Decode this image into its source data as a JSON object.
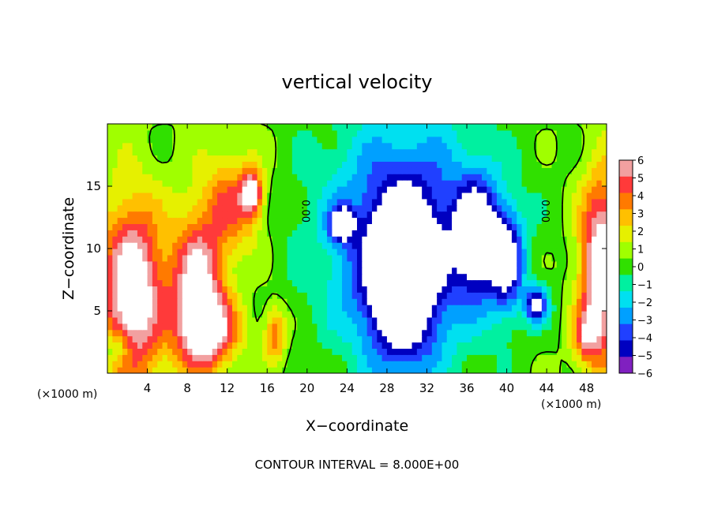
{
  "chart_data": {
    "type": "heatmap",
    "title": "vertical velocity",
    "xlabel": "X−coordinate",
    "ylabel": "Z−coordinate",
    "x_unit_left": "(×1000 m)",
    "x_unit_right": "(×1000 m)",
    "xlim": [
      0,
      50
    ],
    "ylim": [
      0,
      20
    ],
    "xticks": [
      4,
      8,
      12,
      16,
      20,
      24,
      28,
      32,
      36,
      40,
      44,
      48
    ],
    "yticks": [
      5,
      10,
      15
    ],
    "colorbar": {
      "levels": [
        6,
        5,
        4,
        3,
        2,
        1,
        0,
        -1,
        -2,
        -3,
        -4,
        -5,
        -6
      ],
      "tick_labels": [
        "6",
        "5",
        "4",
        "3",
        "2",
        "1",
        "0",
        "−1",
        "−2",
        "−3",
        "−4",
        "−5",
        "−6"
      ],
      "colors": [
        "#f2a0a0",
        "#ff3a3a",
        "#ff7a00",
        "#ffc000",
        "#e6f000",
        "#a0ff00",
        "#30e000",
        "#00f0a0",
        "#00e0f0",
        "#00a0ff",
        "#2040ff",
        "#0000c0",
        "#8020c0"
      ]
    },
    "contour_labels": [
      {
        "text": "0.00",
        "x": 19.5,
        "y": 13
      },
      {
        "text": "0.00",
        "x": 43.5,
        "y": 13
      }
    ],
    "footer": "CONTOUR INTERVAL = 8.000E+00",
    "features": [
      {
        "kind": "updraft",
        "value": 8,
        "x": 2.5,
        "y": 6.5,
        "sx": 2.2,
        "sy": 5.0
      },
      {
        "kind": "updraft",
        "value": 7,
        "x": 9.0,
        "y": 6.5,
        "sx": 1.8,
        "sy": 4.2
      },
      {
        "kind": "updraft",
        "value": 4,
        "x": 12.5,
        "y": 13.5,
        "sx": 2.0,
        "sy": 2.8
      },
      {
        "kind": "updraft",
        "value": 6,
        "x": 14.5,
        "y": 14.5,
        "sx": 0.7,
        "sy": 1.3
      },
      {
        "kind": "updraft",
        "value": 5,
        "x": 10.5,
        "y": 3.5,
        "sx": 2.0,
        "sy": 2.0
      },
      {
        "kind": "updraft",
        "value": 4,
        "x": 16.8,
        "y": 3.2,
        "sx": 0.8,
        "sy": 1.6
      },
      {
        "kind": "updraft",
        "value": 8,
        "x": 49.5,
        "y": 8.5,
        "sx": 1.5,
        "sy": 5.0
      },
      {
        "kind": "updraft",
        "value": 4,
        "x": 48.0,
        "y": 3.0,
        "sx": 1.0,
        "sy": 1.5
      },
      {
        "kind": "downdraft",
        "value": -5,
        "x": 30.0,
        "y": 11.0,
        "sx": 6.5,
        "sy": 7.0
      },
      {
        "kind": "downdraft",
        "value": -8,
        "x": 29.5,
        "y": 7.5,
        "sx": 2.5,
        "sy": 4.5
      },
      {
        "kind": "downdraft",
        "value": -7,
        "x": 37.0,
        "y": 11.0,
        "sx": 1.5,
        "sy": 3.0
      },
      {
        "kind": "downdraft",
        "value": -7,
        "x": 23.5,
        "y": 12.0,
        "sx": 0.8,
        "sy": 0.9
      },
      {
        "kind": "downdraft",
        "value": -6,
        "x": 40.0,
        "y": 9.0,
        "sx": 1.2,
        "sy": 2.8
      },
      {
        "kind": "downdraft",
        "value": -6,
        "x": 43.0,
        "y": 5.5,
        "sx": 0.8,
        "sy": 1.0
      },
      {
        "kind": "downdraft",
        "value": -3,
        "x": 1.0,
        "y": 2.0,
        "sx": 1.0,
        "sy": 1.0
      }
    ]
  }
}
